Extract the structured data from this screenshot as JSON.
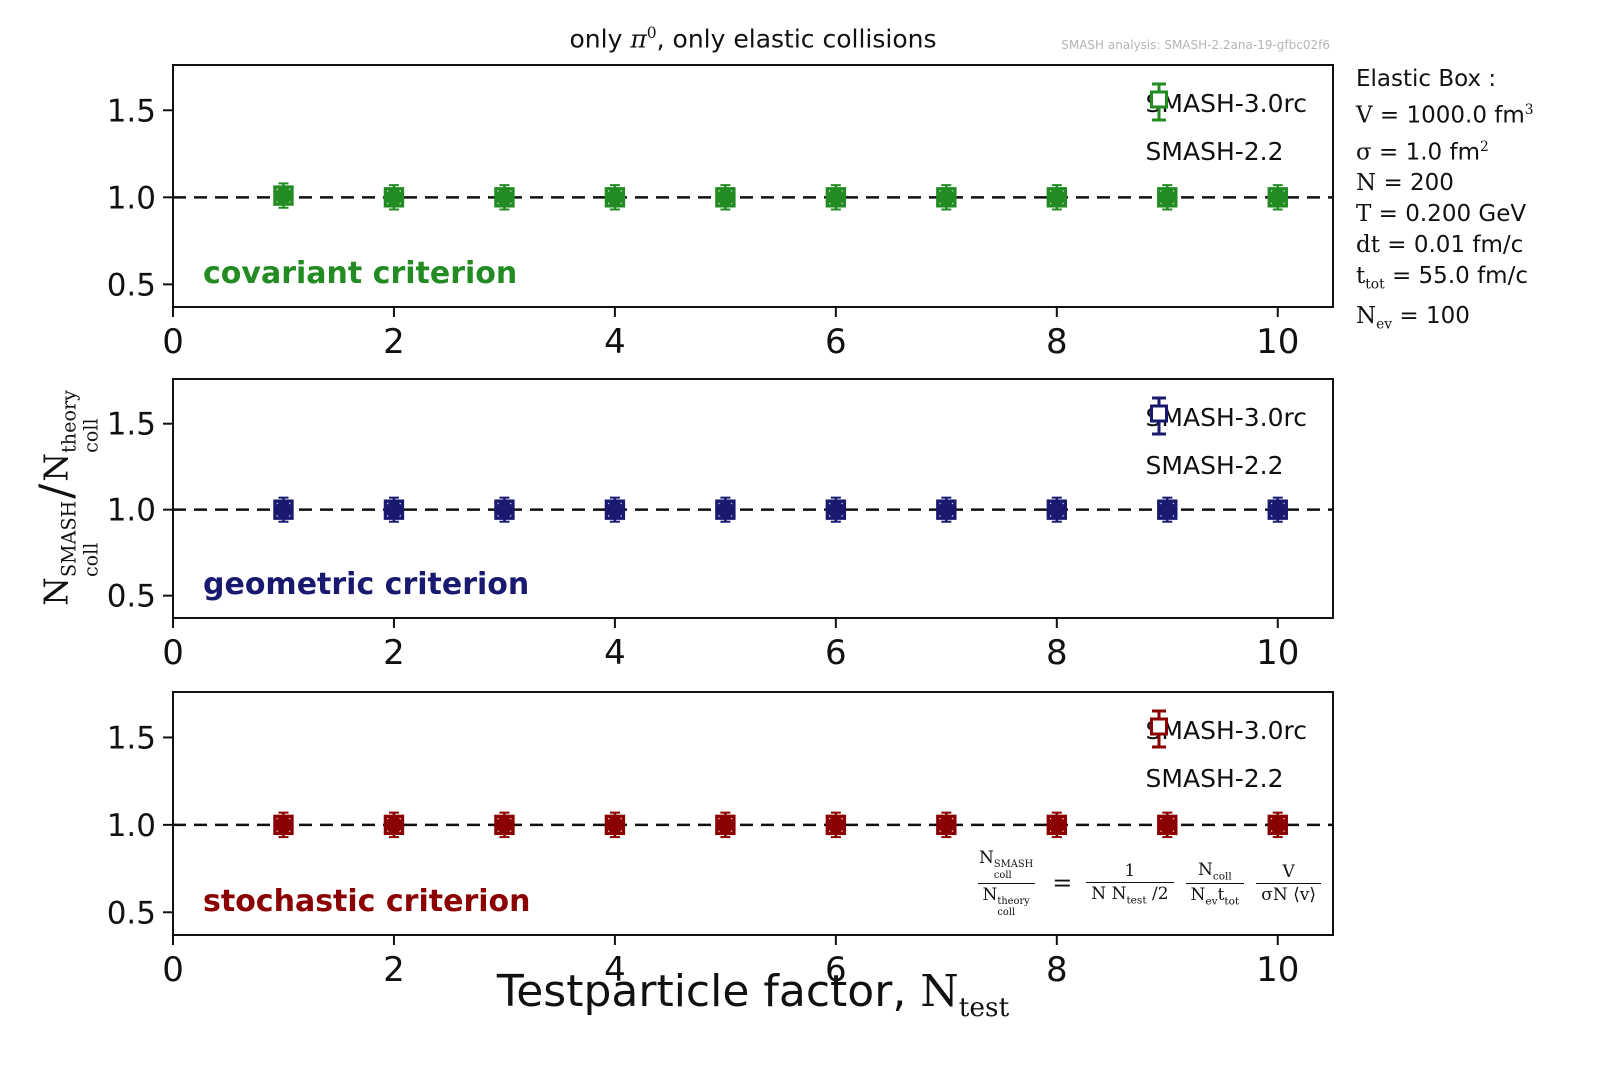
{
  "header": {
    "title_parts": [
      {
        "t": "only "
      },
      {
        "t": "π",
        "cls": "serif-italic"
      },
      {
        "sup": "0",
        "cls": "serif"
      },
      {
        "t": ", only elastic collisions"
      }
    ],
    "analysis_credit": "SMASH analysis: SMASH-2.2ana-19-gfbc02f6"
  },
  "info_box": {
    "lines": [
      [
        {
          "t": "Elastic Box :"
        }
      ],
      [
        {
          "t": "V ",
          "cls": "serif"
        },
        {
          "t": "= 1000.0 fm"
        },
        {
          "sup": "3",
          "cls": "serif"
        }
      ],
      [
        {
          "t": "σ ",
          "cls": "serif"
        },
        {
          "t": "= 1.0 fm"
        },
        {
          "sup": "2",
          "cls": "serif"
        }
      ],
      [
        {
          "t": "N ",
          "cls": "serif"
        },
        {
          "t": "= 200"
        }
      ],
      [
        {
          "t": "T ",
          "cls": "serif"
        },
        {
          "t": "= 0.200 GeV"
        }
      ],
      [
        {
          "t": "dt ",
          "cls": "serif"
        },
        {
          "t": "= 0.01 fm/c"
        }
      ],
      [
        {
          "t": "t",
          "cls": "serif"
        },
        {
          "sub": "tot",
          "cls": "serif"
        },
        {
          "t": " = 55.0 fm/c"
        }
      ],
      [
        {
          "t": "N",
          "cls": "serif"
        },
        {
          "sub": "ev",
          "cls": "serif"
        },
        {
          "t": " = 100"
        }
      ]
    ]
  },
  "axes": {
    "xlabel_parts": [
      {
        "t": "Testparticle factor, "
      },
      {
        "t": "N",
        "cls": "serif"
      },
      {
        "sub": "test",
        "cls": "serif"
      }
    ],
    "ylabel_parts": [
      {
        "t": "N"
      },
      {
        "stack": {
          "sup": "SMASH",
          "sub": "coll"
        }
      },
      {
        "t": "/",
        "cls": "big-slash"
      },
      {
        "t": "N"
      },
      {
        "stack": {
          "sup": "theory",
          "sub": "coll"
        }
      }
    ]
  },
  "formula": {
    "lhs": {
      "num": [
        {
          "t": "N"
        },
        {
          "stack": {
            "sup": "SMASH",
            "sub": "coll"
          }
        }
      ],
      "den": [
        {
          "t": "N"
        },
        {
          "stack": {
            "sup": "theory",
            "sub": "coll"
          }
        }
      ]
    },
    "eq": "=",
    "terms": [
      {
        "num": [
          {
            "t": "1"
          }
        ],
        "den": [
          {
            "t": "N N"
          },
          {
            "sub": "test"
          },
          {
            "t": " /2"
          }
        ]
      },
      {
        "num": [
          {
            "t": "N"
          },
          {
            "sub": "coll"
          }
        ],
        "den": [
          {
            "t": "N"
          },
          {
            "sub": "ev"
          },
          {
            "t": "t"
          },
          {
            "sub": "tot"
          }
        ]
      },
      {
        "num": [
          {
            "t": "V"
          }
        ],
        "den": [
          {
            "t": "σN ⟨v⟩"
          }
        ]
      }
    ]
  },
  "chart_data": {
    "type": "scatter",
    "x_shared": [
      1,
      2,
      3,
      4,
      5,
      6,
      7,
      8,
      9,
      10
    ],
    "xlabel": "Testparticle factor, N_test",
    "ylabel": "N_coll^SMASH / N_coll^theory",
    "xlim": [
      0,
      10.5
    ],
    "ylim": [
      0.37,
      1.76
    ],
    "grid": false,
    "legend_position": "upper right",
    "reference_line": {
      "y": 1.0,
      "style": "dashed",
      "color": "#111111"
    },
    "panels": [
      {
        "id": "covariant",
        "criterion": "covariant criterion",
        "color": "#228B22",
        "x": [
          1,
          2,
          3,
          4,
          5,
          6,
          7,
          8,
          9,
          10
        ],
        "yerr_approx": 0.07,
        "xticks": [
          {
            "v": 0,
            "label": "0"
          },
          {
            "v": 2,
            "label": "2"
          },
          {
            "v": 4,
            "label": "4"
          },
          {
            "v": 6,
            "label": "6"
          },
          {
            "v": 8,
            "label": "8"
          },
          {
            "v": 10,
            "label": "10"
          }
        ],
        "yticks": [
          {
            "v": 0.5,
            "label": "0.5"
          },
          {
            "v": 1.0,
            "label": "1.0"
          },
          {
            "v": 1.5,
            "label": "1.5"
          }
        ],
        "series": [
          {
            "name": "SMASH-3.0rc",
            "marker": "filled-circle",
            "values": [
              1.01,
              1.0,
              1.0,
              1.0,
              1.0,
              1.0,
              1.0,
              1.0,
              1.0,
              1.0
            ]
          },
          {
            "name": "SMASH-2.2",
            "marker": "open-square",
            "values": [
              1.01,
              1.0,
              1.0,
              1.0,
              1.0,
              1.0,
              1.0,
              1.0,
              1.0,
              1.0
            ]
          }
        ]
      },
      {
        "id": "geometric",
        "criterion": "geometric criterion",
        "color": "#191970",
        "x": [
          1,
          2,
          3,
          4,
          5,
          6,
          7,
          8,
          9,
          10
        ],
        "yerr_approx": 0.07,
        "xticks": [
          {
            "v": 0,
            "label": "0"
          },
          {
            "v": 2,
            "label": "2"
          },
          {
            "v": 4,
            "label": "4"
          },
          {
            "v": 6,
            "label": "6"
          },
          {
            "v": 8,
            "label": "8"
          },
          {
            "v": 10,
            "label": "10"
          }
        ],
        "yticks": [
          {
            "v": 0.5,
            "label": "0.5"
          },
          {
            "v": 1.0,
            "label": "1.0"
          },
          {
            "v": 1.5,
            "label": "1.5"
          }
        ],
        "series": [
          {
            "name": "SMASH-3.0rc",
            "marker": "filled-circle",
            "values": [
              1.0,
              1.0,
              1.0,
              1.0,
              1.0,
              1.0,
              1.0,
              1.0,
              1.0,
              1.0
            ]
          },
          {
            "name": "SMASH-2.2",
            "marker": "open-square",
            "values": [
              1.0,
              1.0,
              1.0,
              1.0,
              1.0,
              1.0,
              1.0,
              1.0,
              1.0,
              1.0
            ]
          }
        ]
      },
      {
        "id": "stochastic",
        "criterion": "stochastic criterion",
        "color": "#8B0000",
        "x": [
          1,
          2,
          3,
          4,
          5,
          6,
          7,
          8,
          9,
          10
        ],
        "yerr_approx": 0.07,
        "xticks": [
          {
            "v": 0,
            "label": "0"
          },
          {
            "v": 2,
            "label": "2"
          },
          {
            "v": 4,
            "label": "4"
          },
          {
            "v": 6,
            "label": "6"
          },
          {
            "v": 8,
            "label": "8"
          },
          {
            "v": 10,
            "label": "10"
          }
        ],
        "yticks": [
          {
            "v": 0.5,
            "label": "0.5"
          },
          {
            "v": 1.0,
            "label": "1.0"
          },
          {
            "v": 1.5,
            "label": "1.5"
          }
        ],
        "series": [
          {
            "name": "SMASH-3.0rc",
            "marker": "filled-circle",
            "values": [
              1.0,
              1.0,
              1.0,
              1.0,
              1.0,
              1.0,
              1.0,
              1.0,
              1.0,
              1.0
            ]
          },
          {
            "name": "SMASH-2.2",
            "marker": "open-square",
            "values": [
              1.0,
              1.0,
              1.0,
              1.0,
              1.0,
              1.0,
              1.0,
              1.0,
              1.0,
              1.0
            ]
          }
        ]
      }
    ]
  }
}
